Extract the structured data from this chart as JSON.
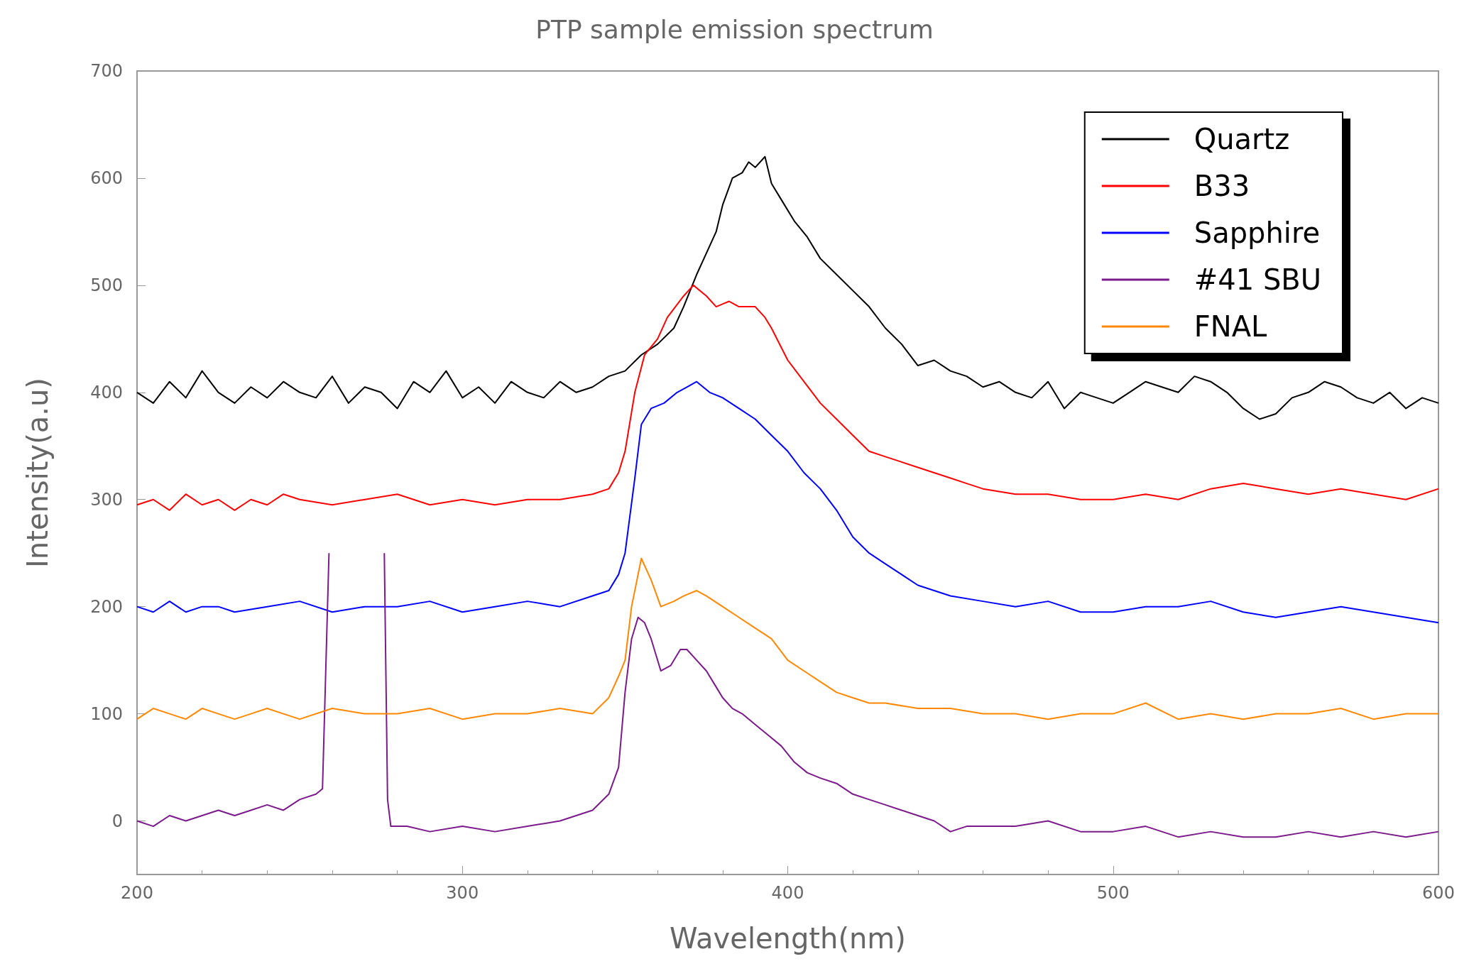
{
  "chart_data": {
    "type": "line",
    "title": "PTP sample emission spectrum",
    "xlabel": "Wavelength(nm)",
    "ylabel": "Intensity(a.u)",
    "xlim": [
      200,
      600
    ],
    "xticks": [
      200,
      300,
      400,
      500,
      600
    ],
    "ylim": [
      -50,
      700
    ],
    "yticks": [
      0,
      100,
      200,
      300,
      400,
      500,
      600,
      700
    ],
    "grid": false,
    "legend": "top right",
    "marker": "none",
    "line_style": "solid",
    "series": [
      {
        "name": "Quartz",
        "color": "#000000",
        "x": [
          200,
          205,
          210,
          215,
          220,
          225,
          230,
          235,
          240,
          245,
          250,
          255,
          260,
          265,
          270,
          275,
          280,
          285,
          290,
          295,
          300,
          305,
          310,
          315,
          320,
          325,
          330,
          335,
          340,
          345,
          350,
          355,
          360,
          365,
          368,
          372,
          375,
          378,
          380,
          383,
          386,
          388,
          390,
          393,
          395,
          398,
          402,
          406,
          410,
          415,
          420,
          425,
          430,
          435,
          440,
          445,
          450,
          455,
          460,
          465,
          470,
          475,
          480,
          485,
          490,
          495,
          500,
          505,
          510,
          515,
          520,
          525,
          530,
          535,
          540,
          545,
          550,
          555,
          560,
          565,
          570,
          575,
          580,
          585,
          590,
          595,
          600
        ],
        "values": [
          400,
          390,
          410,
          395,
          420,
          400,
          390,
          405,
          395,
          410,
          400,
          395,
          415,
          390,
          405,
          400,
          385,
          410,
          400,
          420,
          395,
          405,
          390,
          410,
          400,
          395,
          410,
          400,
          405,
          415,
          420,
          435,
          445,
          460,
          480,
          510,
          530,
          550,
          575,
          600,
          605,
          615,
          610,
          620,
          595,
          580,
          560,
          545,
          525,
          510,
          495,
          480,
          460,
          445,
          425,
          430,
          420,
          415,
          405,
          410,
          400,
          395,
          410,
          385,
          400,
          395,
          390,
          400,
          410,
          405,
          400,
          415,
          410,
          400,
          385,
          375,
          380,
          395,
          400,
          410,
          405,
          395,
          390,
          400,
          385,
          395,
          390
        ]
      },
      {
        "name": "B33",
        "color": "#ff0000",
        "x": [
          200,
          205,
          210,
          215,
          220,
          225,
          230,
          235,
          240,
          245,
          250,
          260,
          270,
          280,
          290,
          300,
          310,
          320,
          330,
          340,
          345,
          348,
          350,
          353,
          356,
          360,
          363,
          368,
          371,
          375,
          378,
          382,
          385,
          390,
          393,
          395,
          400,
          405,
          410,
          415,
          420,
          425,
          430,
          435,
          440,
          445,
          450,
          455,
          460,
          470,
          480,
          490,
          500,
          510,
          520,
          530,
          540,
          550,
          560,
          570,
          580,
          590,
          600
        ],
        "values": [
          295,
          300,
          290,
          305,
          295,
          300,
          290,
          300,
          295,
          305,
          300,
          295,
          300,
          305,
          295,
          300,
          295,
          300,
          300,
          305,
          310,
          325,
          345,
          400,
          435,
          450,
          470,
          490,
          500,
          490,
          480,
          485,
          480,
          480,
          470,
          460,
          430,
          410,
          390,
          375,
          360,
          345,
          340,
          335,
          330,
          325,
          320,
          315,
          310,
          305,
          305,
          300,
          300,
          305,
          300,
          310,
          315,
          310,
          305,
          310,
          305,
          300,
          310
        ]
      },
      {
        "name": "Sapphire",
        "color": "#0000ff",
        "x": [
          200,
          205,
          210,
          215,
          220,
          225,
          230,
          240,
          250,
          260,
          270,
          280,
          290,
          300,
          310,
          320,
          330,
          340,
          345,
          348,
          350,
          353,
          355,
          358,
          362,
          366,
          369,
          372,
          376,
          380,
          385,
          390,
          395,
          400,
          405,
          410,
          415,
          420,
          425,
          430,
          435,
          440,
          445,
          450,
          460,
          470,
          480,
          490,
          500,
          510,
          520,
          530,
          540,
          550,
          560,
          570,
          580,
          590,
          600
        ],
        "values": [
          200,
          195,
          205,
          195,
          200,
          200,
          195,
          200,
          205,
          195,
          200,
          200,
          205,
          195,
          200,
          205,
          200,
          210,
          215,
          230,
          250,
          320,
          370,
          385,
          390,
          400,
          405,
          410,
          400,
          395,
          385,
          375,
          360,
          345,
          325,
          310,
          290,
          265,
          250,
          240,
          230,
          220,
          215,
          210,
          205,
          200,
          205,
          195,
          195,
          200,
          200,
          205,
          195,
          190,
          195,
          200,
          195,
          190,
          185
        ]
      },
      {
        "name": "#41 SBU",
        "color": "#7b1a8a",
        "x": [
          200,
          205,
          210,
          215,
          220,
          225,
          230,
          235,
          240,
          245,
          250,
          255,
          257,
          259,
          null,
          276,
          277,
          278,
          283,
          290,
          300,
          310,
          320,
          330,
          335,
          340,
          345,
          348,
          350,
          352,
          354,
          356,
          358,
          361,
          364,
          367,
          369,
          372,
          375,
          378,
          380,
          383,
          386,
          390,
          394,
          398,
          402,
          406,
          410,
          415,
          420,
          425,
          430,
          435,
          440,
          445,
          450,
          455,
          460,
          470,
          480,
          490,
          500,
          510,
          520,
          530,
          540,
          550,
          560,
          570,
          580,
          590,
          600
        ],
        "values": [
          0,
          -5,
          5,
          0,
          5,
          10,
          5,
          10,
          15,
          10,
          20,
          25,
          30,
          250,
          null,
          250,
          20,
          -5,
          -5,
          -10,
          -5,
          -10,
          -5,
          0,
          5,
          10,
          25,
          50,
          120,
          170,
          190,
          185,
          170,
          140,
          145,
          160,
          160,
          150,
          140,
          125,
          115,
          105,
          100,
          90,
          80,
          70,
          55,
          45,
          40,
          35,
          25,
          20,
          15,
          10,
          5,
          0,
          -10,
          -5,
          -5,
          -5,
          0,
          -10,
          -10,
          -5,
          -15,
          -10,
          -15,
          -15,
          -10,
          -15,
          -10,
          -15,
          -10
        ]
      },
      {
        "name": "FNAL",
        "color": "#ff8800",
        "x": [
          200,
          205,
          210,
          215,
          220,
          225,
          230,
          235,
          240,
          245,
          250,
          260,
          270,
          280,
          290,
          300,
          310,
          320,
          330,
          340,
          345,
          348,
          350,
          352,
          355,
          358,
          361,
          365,
          368,
          372,
          375,
          380,
          385,
          390,
          395,
          400,
          405,
          410,
          415,
          420,
          425,
          430,
          440,
          450,
          460,
          470,
          480,
          490,
          500,
          510,
          520,
          530,
          540,
          550,
          560,
          570,
          580,
          590,
          600
        ],
        "values": [
          95,
          105,
          100,
          95,
          105,
          100,
          95,
          100,
          105,
          100,
          95,
          105,
          100,
          100,
          105,
          95,
          100,
          100,
          105,
          100,
          115,
          135,
          150,
          200,
          245,
          225,
          200,
          205,
          210,
          215,
          210,
          200,
          190,
          180,
          170,
          150,
          140,
          130,
          120,
          115,
          110,
          110,
          105,
          105,
          100,
          100,
          95,
          100,
          100,
          110,
          95,
          100,
          95,
          100,
          100,
          105,
          95,
          100,
          100
        ]
      }
    ]
  }
}
